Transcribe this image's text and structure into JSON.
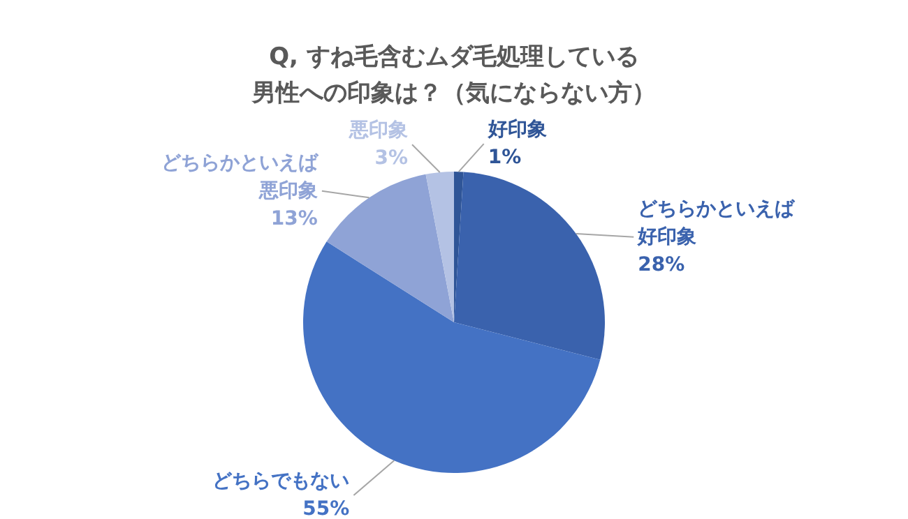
{
  "chart_data": {
    "type": "pie",
    "title": "Q, すね毛含むムダ毛処理している男性への印象は？（気にならない方）",
    "categories": [
      "好印象",
      "どちらかといえば好印象",
      "どちらでもない",
      "どちらかといえば悪印象",
      "悪印象"
    ],
    "values": [
      1,
      28,
      55,
      13,
      3
    ],
    "value_labels": [
      "1%",
      "28%",
      "55%",
      "13%",
      "3%"
    ],
    "colors": [
      "#2f5597",
      "#3a62ad",
      "#4472c4",
      "#8fa3d6",
      "#b4c2e4"
    ]
  }
}
